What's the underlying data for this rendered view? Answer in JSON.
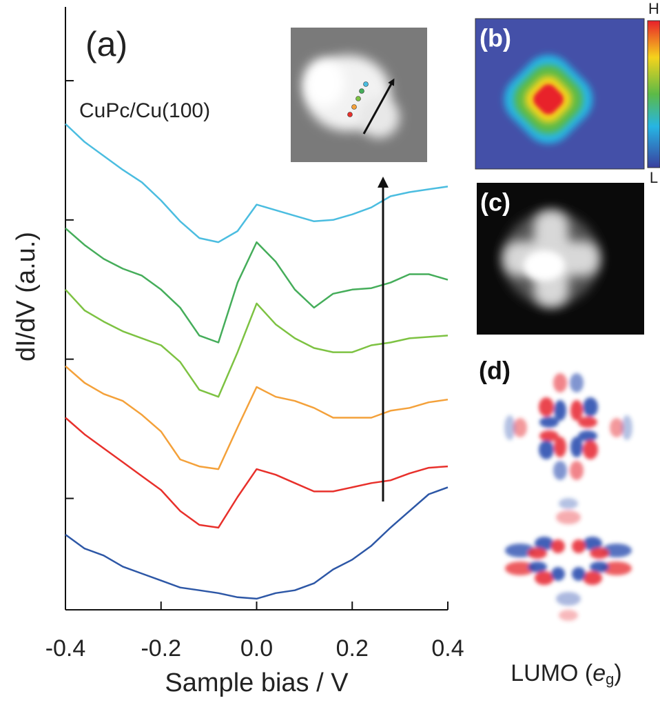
{
  "chart_data": {
    "type": "line",
    "annotations": [
      "(a)",
      "CuPc/Cu(100)"
    ],
    "x_label": "Sample bias / V",
    "y_label": "dI/dV (a.u.)",
    "x": [
      -0.4,
      -0.36,
      -0.32,
      -0.28,
      -0.24,
      -0.2,
      -0.16,
      -0.12,
      -0.08,
      -0.04,
      0,
      0.04,
      0.08,
      0.12,
      0.16,
      0.2,
      0.24,
      0.28,
      0.32,
      0.36,
      0.4
    ],
    "series": [
      {
        "color": "#4bbde0",
        "values": [
          3.69,
          3.56,
          3.46,
          3.36,
          3.27,
          3.14,
          2.99,
          2.87,
          2.84,
          2.92,
          3.11,
          3.07,
          3.03,
          2.99,
          3.0,
          3.04,
          3.09,
          3.17,
          3.2,
          3.22,
          3.24
        ]
      },
      {
        "color": "#45ad5a",
        "values": [
          2.94,
          2.82,
          2.72,
          2.65,
          2.6,
          2.5,
          2.37,
          2.17,
          2.12,
          2.55,
          2.84,
          2.7,
          2.5,
          2.37,
          2.47,
          2.5,
          2.51,
          2.55,
          2.61,
          2.61,
          2.57
        ]
      },
      {
        "color": "#7dc242",
        "values": [
          2.5,
          2.35,
          2.27,
          2.2,
          2.15,
          2.1,
          1.98,
          1.78,
          1.73,
          2.05,
          2.4,
          2.25,
          2.15,
          2.08,
          2.05,
          2.05,
          2.1,
          2.12,
          2.15,
          2.16,
          2.17
        ]
      },
      {
        "color": "#f4a13a",
        "values": [
          1.95,
          1.83,
          1.75,
          1.7,
          1.6,
          1.48,
          1.28,
          1.23,
          1.21,
          1.51,
          1.8,
          1.73,
          1.7,
          1.65,
          1.58,
          1.58,
          1.58,
          1.63,
          1.65,
          1.69,
          1.71
        ]
      },
      {
        "color": "#e8302b",
        "values": [
          1.58,
          1.46,
          1.36,
          1.26,
          1.16,
          1.06,
          0.91,
          0.81,
          0.79,
          1.01,
          1.21,
          1.17,
          1.11,
          1.05,
          1.05,
          1.08,
          1.11,
          1.13,
          1.18,
          1.22,
          1.23
        ]
      },
      {
        "color": "#2d57a6",
        "values": [
          0.74,
          0.64,
          0.59,
          0.51,
          0.46,
          0.41,
          0.36,
          0.34,
          0.32,
          0.29,
          0.28,
          0.32,
          0.34,
          0.39,
          0.49,
          0.56,
          0.66,
          0.79,
          0.91,
          1.03,
          1.08
        ]
      }
    ],
    "xlim": [
      -0.4,
      0.4
    ],
    "xticks": [
      -0.4,
      -0.2,
      {
        "value": 0,
        "label": "0.0"
      },
      0.2,
      0.4
    ],
    "ylim": [
      0.2,
      4.53
    ],
    "yticks": [
      1,
      2,
      3,
      4
    ]
  },
  "panels": {
    "b": {
      "label": "(b)",
      "scale_high": "H",
      "scale_low": "L"
    },
    "c": {
      "label": "(c)"
    },
    "d": {
      "label": "(d)",
      "caption": {
        "prefix": "LUMO (",
        "symbol": "e",
        "subscript": "g",
        "suffix": ")"
      }
    }
  }
}
